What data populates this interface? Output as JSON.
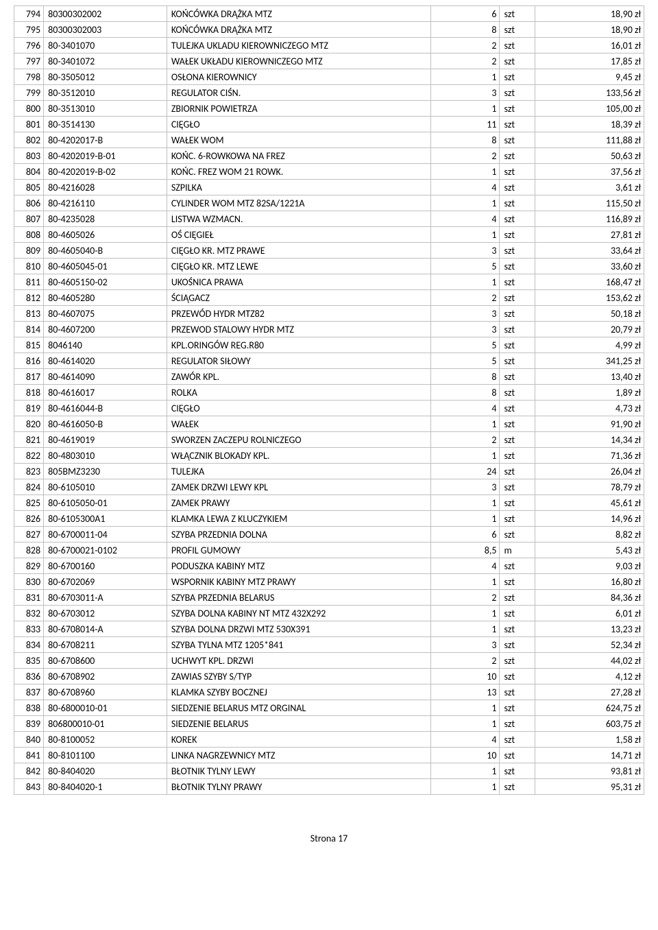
{
  "footer": "Strona 17",
  "columns": [
    "num",
    "code",
    "desc",
    "qty",
    "unit",
    "price"
  ],
  "rows": [
    [
      "794",
      "80300302002",
      "KOŃCÓWKA DRĄŻKA MTZ",
      "6",
      "szt",
      "18,90 zł"
    ],
    [
      "795",
      "80300302003",
      "KOŃCÓWKA DRĄŻKA MTZ",
      "8",
      "szt",
      "18,90 zł"
    ],
    [
      "796",
      "80-3401070",
      "TULEJKA UKLADU KIEROWNICZEGO MTZ",
      "2",
      "szt",
      "16,01 zł"
    ],
    [
      "797",
      "80-3401072",
      "WAŁEK UKŁADU KIEROWNICZEGO MTZ",
      "2",
      "szt",
      "17,85 zł"
    ],
    [
      "798",
      "80-3505012",
      "OSŁONA KIEROWNICY",
      "1",
      "szt",
      "9,45 zł"
    ],
    [
      "799",
      "80-3512010",
      "REGULATOR CIŚN.",
      "3",
      "szt",
      "133,56 zł"
    ],
    [
      "800",
      "80-3513010",
      "ZBIORNIK POWIETRZA",
      "1",
      "szt",
      "105,00 zł"
    ],
    [
      "801",
      "80-3514130",
      "CIĘGŁO",
      "11",
      "szt",
      "18,39 zł"
    ],
    [
      "802",
      "80-4202017-B",
      "WAŁEK WOM",
      "8",
      "szt",
      "111,88 zł"
    ],
    [
      "803",
      "80-4202019-B-01",
      "KOŃC. 6-ROWKOWA NA FREZ",
      "2",
      "szt",
      "50,63 zł"
    ],
    [
      "804",
      "80-4202019-B-02",
      "KOŃC. FREZ WOM 21 ROWK.",
      "1",
      "szt",
      "37,56 zł"
    ],
    [
      "805",
      "80-4216028",
      "SZPILKA",
      "4",
      "szt",
      "3,61 zł"
    ],
    [
      "806",
      "80-4216110",
      "CYLINDER WOM MTZ 82SA/1221A",
      "1",
      "szt",
      "115,50 zł"
    ],
    [
      "807",
      "80-4235028",
      "LISTWA WZMACN.",
      "4",
      "szt",
      "116,89 zł"
    ],
    [
      "808",
      "80-4605026",
      "OŚ CIĘGIEŁ",
      "1",
      "szt",
      "27,81 zł"
    ],
    [
      "809",
      "80-4605040-B",
      "CIĘGŁO KR. MTZ PRAWE",
      "3",
      "szt",
      "33,64 zł"
    ],
    [
      "810",
      "80-4605045-01",
      "CIĘGŁO KR. MTZ LEWE",
      "5",
      "szt",
      "33,60 zł"
    ],
    [
      "811",
      "80-4605150-02",
      "UKOŚNICA PRAWA",
      "1",
      "szt",
      "168,47 zł"
    ],
    [
      "812",
      "80-4605280",
      "ŚCIĄGACZ",
      "2",
      "szt",
      "153,62 zł"
    ],
    [
      "813",
      "80-4607075",
      "PRZEWÓD HYDR MTZ82",
      "3",
      "szt",
      "50,18 zł"
    ],
    [
      "814",
      "80-4607200",
      "PRZEWOD STALOWY HYDR MTZ",
      "3",
      "szt",
      "20,79 zł"
    ],
    [
      "815",
      "8046140",
      "KPL.ORINGÓW REG.R80",
      "5",
      "szt",
      "4,99 zł"
    ],
    [
      "816",
      "80-4614020",
      "REGULATOR SIŁOWY",
      "5",
      "szt",
      "341,25 zł"
    ],
    [
      "817",
      "80-4614090",
      "ZAWÓR KPL.",
      "8",
      "szt",
      "13,40 zł"
    ],
    [
      "818",
      "80-4616017",
      "ROLKA",
      "8",
      "szt",
      "1,89 zł"
    ],
    [
      "819",
      "80-4616044-B",
      "CIĘGŁO",
      "4",
      "szt",
      "4,73 zł"
    ],
    [
      "820",
      "80-4616050-B",
      "WAŁEK",
      "1",
      "szt",
      "91,90 zł"
    ],
    [
      "821",
      "80-4619019",
      "SWORZEN ZACZEPU ROLNICZEGO",
      "2",
      "szt",
      "14,34 zł"
    ],
    [
      "822",
      "80-4803010",
      "WŁĄCZNIK BLOKADY KPL.",
      "1",
      "szt",
      "71,36 zł"
    ],
    [
      "823",
      "805BMZ3230",
      "TULEJKA",
      "24",
      "szt",
      "26,04 zł"
    ],
    [
      "824",
      "80-6105010",
      "ZAMEK DRZWI LEWY KPL",
      "3",
      "szt",
      "78,79 zł"
    ],
    [
      "825",
      "80-6105050-01",
      "ZAMEK PRAWY",
      "1",
      "szt",
      "45,61 zł"
    ],
    [
      "826",
      "80-6105300A1",
      "KLAMKA LEWA Z KLUCZYKIEM",
      "1",
      "szt",
      "14,96 zł"
    ],
    [
      "827",
      "80-6700011-04",
      "SZYBA PRZEDNIA DOLNA",
      "6",
      "szt",
      "8,82 zł"
    ],
    [
      "828",
      "80-6700021-0102",
      "PROFIL GUMOWY",
      "8,5",
      "m",
      "5,43 zł"
    ],
    [
      "829",
      "80-6700160",
      "PODUSZKA KABINY MTZ",
      "4",
      "szt",
      "9,03 zł"
    ],
    [
      "830",
      "80-6702069",
      "WSPORNIK KABINY MTZ PRAWY",
      "1",
      "szt",
      "16,80 zł"
    ],
    [
      "831",
      "80-6703011-A",
      "SZYBA PRZEDNIA BELARUS",
      "2",
      "szt",
      "84,36 zł"
    ],
    [
      "832",
      "80-6703012",
      "SZYBA DOLNA KABINY NT MTZ 432X292",
      "1",
      "szt",
      "6,01 zł"
    ],
    [
      "833",
      "80-6708014-A",
      "SZYBA DOLNA DRZWI MTZ 530X391",
      "1",
      "szt",
      "13,23 zł"
    ],
    [
      "834",
      "80-6708211",
      "SZYBA TYLNA MTZ 1205*841",
      "3",
      "szt",
      "52,34 zł"
    ],
    [
      "835",
      "80-6708600",
      "UCHWYT KPL. DRZWI",
      "2",
      "szt",
      "44,02 zł"
    ],
    [
      "836",
      "80-6708902",
      "ZAWIAS SZYBY S/TYP",
      "10",
      "szt",
      "4,12 zł"
    ],
    [
      "837",
      "80-6708960",
      "KLAMKA SZYBY BOCZNEJ",
      "13",
      "szt",
      "27,28 zł"
    ],
    [
      "838",
      "80-6800010-01",
      "SIEDZENIE BELARUS MTZ ORGINAL",
      "1",
      "szt",
      "624,75 zł"
    ],
    [
      "839",
      "806800010-01",
      "SIEDZENIE BELARUS",
      "1",
      "szt",
      "603,75 zł"
    ],
    [
      "840",
      "80-8100052",
      "KOREK",
      "4",
      "szt",
      "1,58 zł"
    ],
    [
      "841",
      "80-8101100",
      "LINKA NAGRZEWNICY MTZ",
      "10",
      "szt",
      "14,71 zł"
    ],
    [
      "842",
      "80-8404020",
      "BŁOTNIK TYLNY LEWY",
      "1",
      "szt",
      "93,81 zł"
    ],
    [
      "843",
      "80-8404020-1",
      "BŁOTNIK TYLNY PRAWY",
      "1",
      "szt",
      "95,31 zł"
    ]
  ]
}
